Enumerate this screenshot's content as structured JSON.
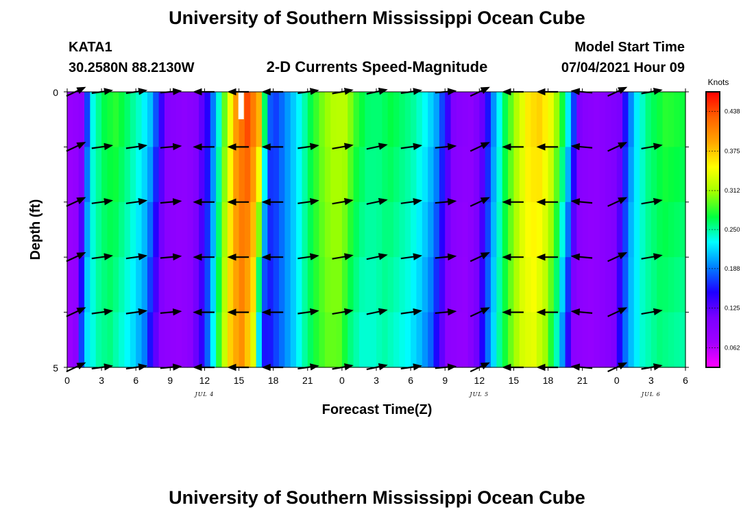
{
  "title": "University of Southern Mississippi Ocean Cube",
  "footer_title": "University of Southern Mississippi Ocean Cube",
  "station": {
    "id": "KATA1",
    "coords": "30.2580N  88.2130W"
  },
  "subtitle": "2-D Currents Speed-Magnitude",
  "model": {
    "label": "Model Start Time",
    "value": "07/04/2021 Hour 09"
  },
  "chart_data": {
    "type": "heatmap",
    "title": "2-D Currents Speed-Magnitude",
    "xlabel": "Forecast Time(Z)",
    "ylabel": "Depth (ft)",
    "x_hours": [
      0,
      3,
      6,
      9,
      12,
      15,
      18,
      21,
      24,
      27,
      30,
      33,
      36,
      39,
      42,
      45,
      48,
      51,
      54
    ],
    "x_tick_labels": [
      "0",
      "3",
      "6",
      "9",
      "12",
      "15",
      "18",
      "21",
      "0",
      "3",
      "6",
      "9",
      "12",
      "15",
      "18",
      "21",
      "0",
      "3",
      "6"
    ],
    "xlim": [
      0,
      54
    ],
    "ylim": [
      0,
      5
    ],
    "y_tick_labels": [
      "0",
      "5"
    ],
    "y_ticks": [
      0,
      1,
      2,
      3,
      4,
      5
    ],
    "date_labels": [
      {
        "text": "JUL 4",
        "hour": 12
      },
      {
        "text": "JUL 5",
        "hour": 36
      },
      {
        "text": "JUL 6",
        "hour": 51
      }
    ],
    "depths": [
      0,
      1,
      2,
      3,
      4,
      5
    ],
    "speed_profile": [
      [
        0,
        0.08
      ],
      [
        1,
        0.09
      ],
      [
        1.5,
        0.18
      ],
      [
        2,
        0.24
      ],
      [
        3,
        0.27
      ],
      [
        4,
        0.28
      ],
      [
        5,
        0.26
      ],
      [
        6,
        0.24
      ],
      [
        7,
        0.21
      ],
      [
        7.8,
        0.15
      ],
      [
        8.5,
        0.1
      ],
      [
        10,
        0.09
      ],
      [
        11,
        0.1
      ],
      [
        12,
        0.15
      ],
      [
        12.7,
        0.21
      ],
      [
        13.5,
        0.3
      ],
      [
        14.5,
        0.4
      ],
      [
        15.5,
        0.44
      ],
      [
        16.5,
        0.38
      ],
      [
        17,
        0.25
      ],
      [
        17.5,
        0.17
      ],
      [
        18,
        0.17
      ],
      [
        19,
        0.2
      ],
      [
        20,
        0.23
      ],
      [
        21,
        0.27
      ],
      [
        22,
        0.3
      ],
      [
        23,
        0.32
      ],
      [
        24,
        0.32
      ],
      [
        25,
        0.28
      ],
      [
        26,
        0.26
      ],
      [
        27,
        0.26
      ],
      [
        28,
        0.27
      ],
      [
        29,
        0.26
      ],
      [
        30,
        0.25
      ],
      [
        31,
        0.23
      ],
      [
        32,
        0.2
      ],
      [
        32.8,
        0.15
      ],
      [
        33.5,
        0.1
      ],
      [
        35,
        0.09
      ],
      [
        36,
        0.12
      ],
      [
        37,
        0.2
      ],
      [
        38,
        0.27
      ],
      [
        39,
        0.32
      ],
      [
        40,
        0.36
      ],
      [
        41,
        0.37
      ],
      [
        42,
        0.34
      ],
      [
        43,
        0.27
      ],
      [
        43.7,
        0.2
      ],
      [
        44.5,
        0.1
      ],
      [
        46,
        0.09
      ],
      [
        48,
        0.11
      ],
      [
        48.5,
        0.16
      ],
      [
        49.3,
        0.22
      ],
      [
        50.5,
        0.26
      ],
      [
        52,
        0.28
      ],
      [
        54,
        0.27
      ]
    ],
    "arrow_hours": [
      0,
      3,
      6,
      9,
      12,
      15,
      18,
      21,
      24,
      27,
      30,
      33,
      36,
      39,
      42,
      45,
      48,
      51
    ],
    "arrow_directions_deg": [
      25,
      8,
      8,
      5,
      180,
      180,
      180,
      8,
      10,
      12,
      8,
      5,
      25,
      180,
      180,
      175,
      25,
      10
    ],
    "colorbar": {
      "units": "Knots",
      "min": 0.031,
      "max": 0.469,
      "tick_labels": [
        "0.062",
        "0.125",
        "0.188",
        "0.250",
        "0.312",
        "0.375",
        "0.438"
      ],
      "tick_values": [
        0.062,
        0.125,
        0.188,
        0.25,
        0.312,
        0.375,
        0.438
      ],
      "colors": [
        "#ff00ff",
        "#a000ff",
        "#7a00ff",
        "#1e00ff",
        "#0080ff",
        "#00ffff",
        "#00ff40",
        "#a0ff00",
        "#ffff00",
        "#ffa500",
        "#ff6000",
        "#ff0000"
      ]
    }
  }
}
